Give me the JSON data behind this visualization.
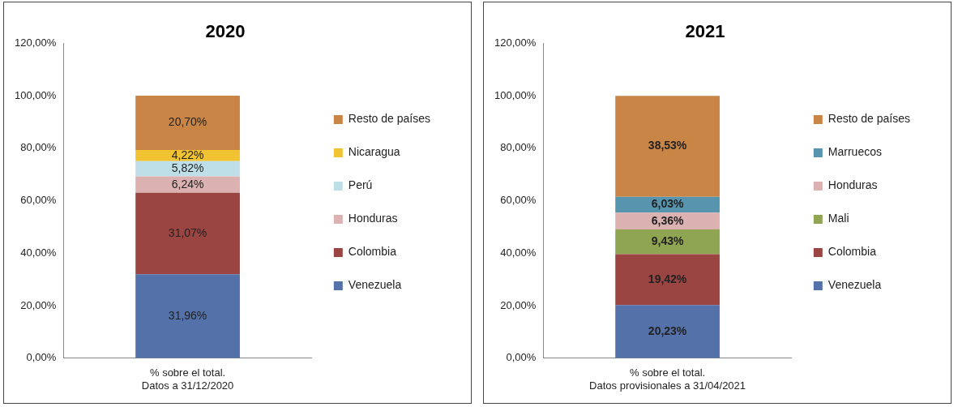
{
  "chart_data": [
    {
      "type": "bar",
      "title": "2020",
      "categories": [
        "% sobre el total.\nDatos a 31/12/2020"
      ],
      "stacked": true,
      "legend": "right",
      "ylim": [
        0,
        120
      ],
      "yticks": [
        {
          "value": 0,
          "label": "0,00%"
        },
        {
          "value": 20,
          "label": "20,00%"
        },
        {
          "value": 40,
          "label": "40,00%"
        },
        {
          "value": 60,
          "label": "60,00%"
        },
        {
          "value": 80,
          "label": "80,00%"
        },
        {
          "value": 100,
          "label": "100,00%"
        },
        {
          "value": 120,
          "label": "120,00%"
        }
      ],
      "series": [
        {
          "name": "Venezuela",
          "color": "#5471a9",
          "values": [
            31.96
          ],
          "value_labels": [
            "31,96%"
          ]
        },
        {
          "name": "Colombia",
          "color": "#9b4543",
          "values": [
            31.07
          ],
          "value_labels": [
            "31,07%"
          ]
        },
        {
          "name": "Honduras",
          "color": "#dbb1b1",
          "values": [
            6.24
          ],
          "value_labels": [
            "6,24%"
          ]
        },
        {
          "name": "Perú",
          "color": "#bfdfe8",
          "values": [
            5.82
          ],
          "value_labels": [
            "5,82%"
          ]
        },
        {
          "name": "Nicaragua",
          "color": "#f1c232",
          "values": [
            4.22
          ],
          "value_labels": [
            "4,22%"
          ]
        },
        {
          "name": "Resto de países",
          "color": "#c98545",
          "values": [
            20.7
          ],
          "value_labels": [
            "20,70%"
          ]
        }
      ]
    },
    {
      "type": "bar",
      "title": "2021",
      "categories": [
        "% sobre el total.\nDatos provisionales a 31/04/2021"
      ],
      "stacked": true,
      "legend": "right",
      "ylim": [
        0,
        120
      ],
      "yticks": [
        {
          "value": 0,
          "label": "0,00%"
        },
        {
          "value": 20,
          "label": "20,00%"
        },
        {
          "value": 40,
          "label": "40,00%"
        },
        {
          "value": 60,
          "label": "60,00%"
        },
        {
          "value": 80,
          "label": "80,00%"
        },
        {
          "value": 100,
          "label": "100,00%"
        },
        {
          "value": 120,
          "label": "120,00%"
        }
      ],
      "series": [
        {
          "name": "Venezuela",
          "color": "#5471a9",
          "values": [
            20.23
          ],
          "value_labels": [
            "20,23%"
          ]
        },
        {
          "name": "Colombia",
          "color": "#9b4543",
          "values": [
            19.42
          ],
          "value_labels": [
            "19,42%"
          ]
        },
        {
          "name": "Mali",
          "color": "#8fa552",
          "values": [
            9.43
          ],
          "value_labels": [
            "9,43%"
          ]
        },
        {
          "name": "Honduras",
          "color": "#dbb1b1",
          "values": [
            6.36
          ],
          "value_labels": [
            "6,36%"
          ]
        },
        {
          "name": "Marruecos",
          "color": "#5795ae",
          "values": [
            6.03
          ],
          "value_labels": [
            "6,03%"
          ]
        },
        {
          "name": "Resto de países",
          "color": "#c98545",
          "values": [
            38.53
          ],
          "value_labels": [
            "38,53%"
          ]
        }
      ]
    }
  ]
}
